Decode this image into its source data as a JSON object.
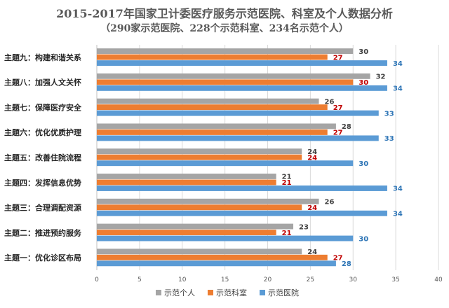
{
  "chart_data": {
    "type": "bar",
    "orientation": "horizontal",
    "title": "2015-2017年国家卫计委医疗服务示范医院、科室及个人数据分析",
    "subtitle": "（290家示范医院、228个示范科室、234名示范个人）",
    "categories": [
      "主题九：构建和谐关系",
      "主题八：加强人文关怀",
      "主题七：保障医疗安全",
      "主题六：优化优质护理",
      "主题五：改善住院流程",
      "主题四：发挥信息优势",
      "主题三：合理调配资源",
      "主题二：推进预约服务",
      "主题一：优化诊区布局"
    ],
    "series": [
      {
        "name": "示范个人",
        "color": "#a5a5a5",
        "label_color": "#404040",
        "values": [
          30,
          32,
          26,
          28,
          24,
          21,
          26,
          23,
          24
        ]
      },
      {
        "name": "示范科室",
        "color": "#ed7d31",
        "label_color": "#c00000",
        "values": [
          27,
          30,
          27,
          27,
          24,
          21,
          24,
          21,
          27
        ]
      },
      {
        "name": "示范医院",
        "color": "#5b9bd5",
        "label_color": "#2e75b6",
        "values": [
          34,
          34,
          33,
          33,
          30,
          34,
          34,
          30,
          28
        ]
      }
    ],
    "xlim": [
      0,
      40
    ],
    "xticks": [
      "0",
      "5",
      "10",
      "15",
      "20",
      "25",
      "30",
      "35",
      "40"
    ],
    "grid": true,
    "legend": "bottom"
  }
}
